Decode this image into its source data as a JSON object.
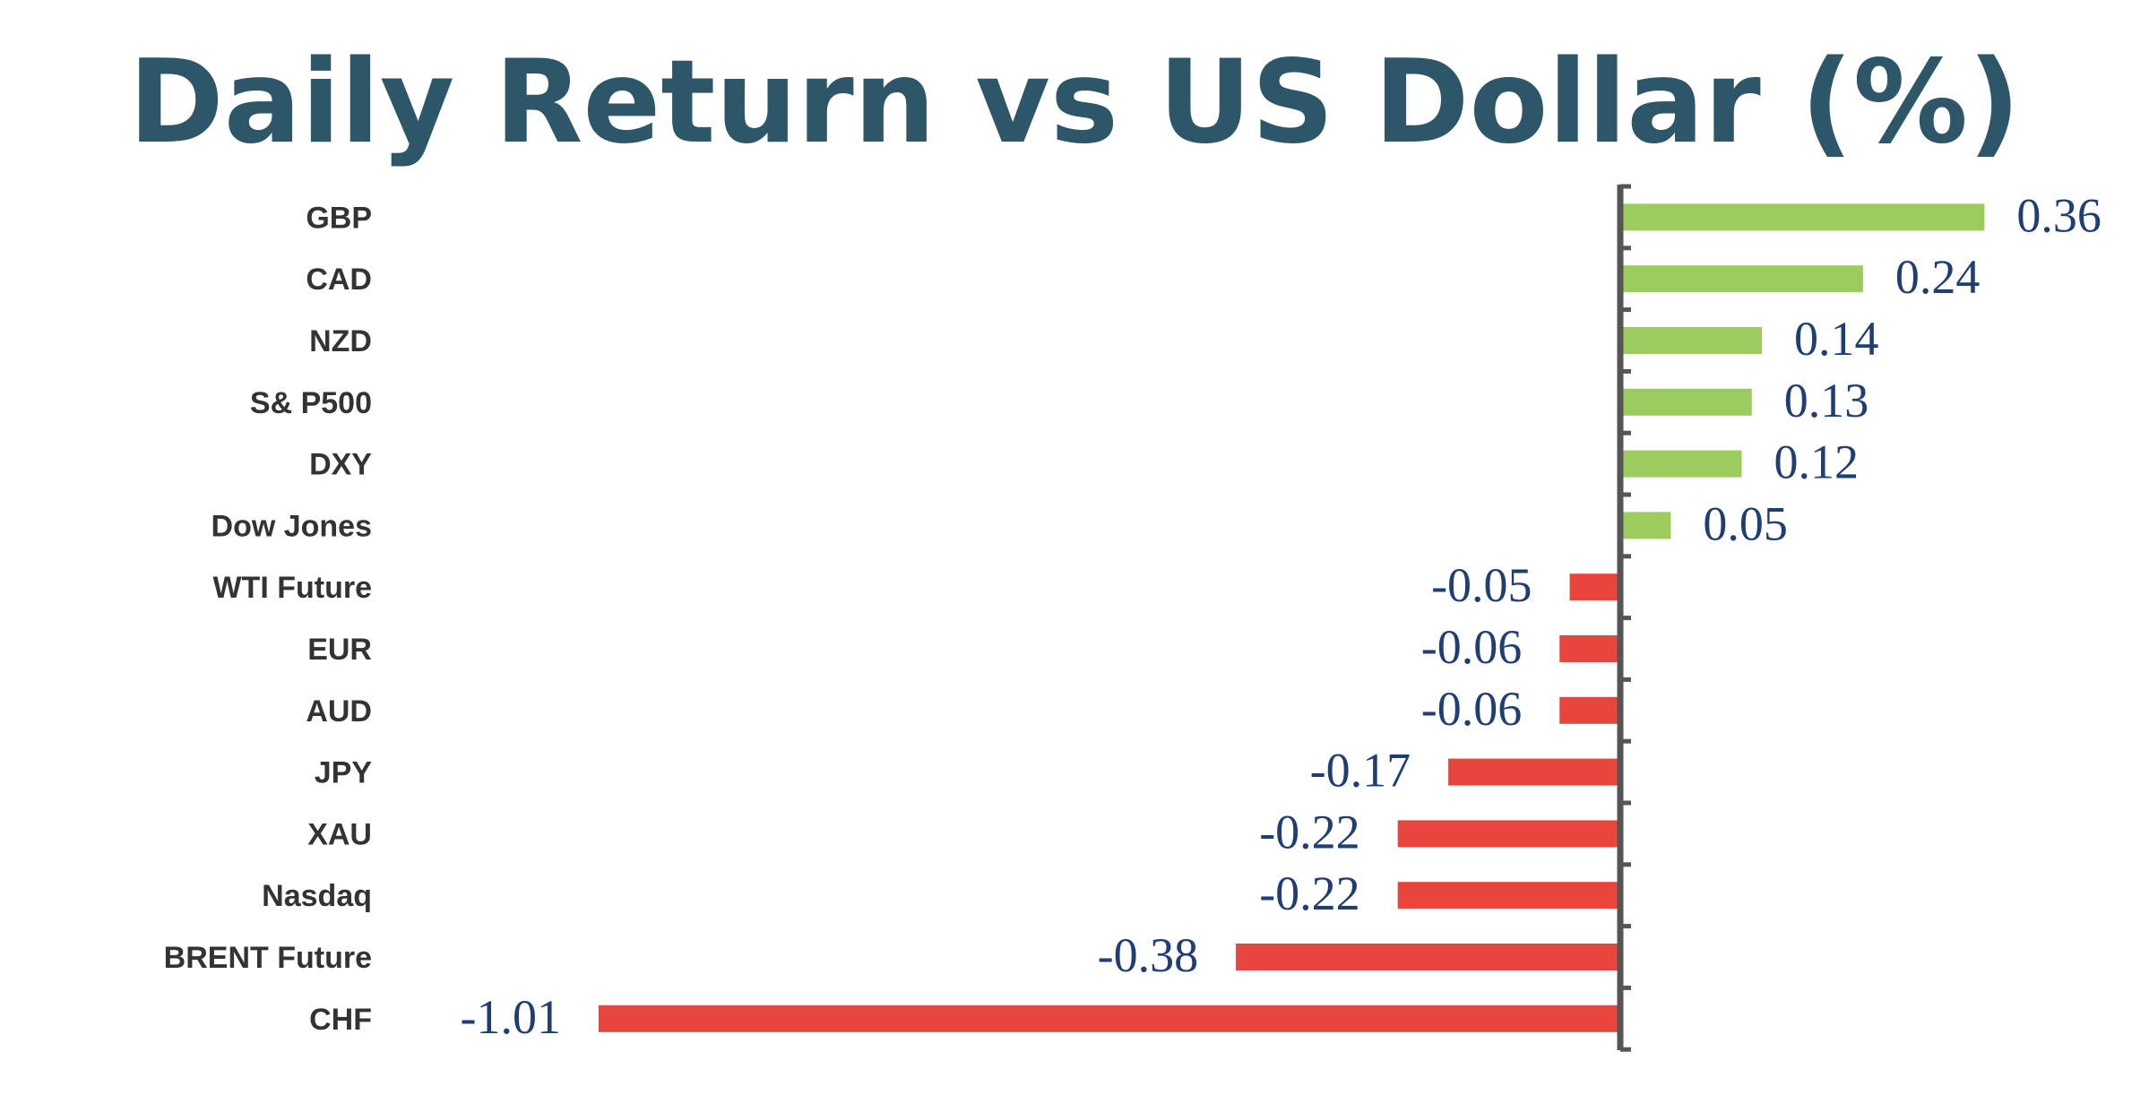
{
  "chart_data": {
    "type": "bar",
    "orientation": "horizontal",
    "title": "Daily Return vs US Dollar (%)",
    "categories": [
      "GBP",
      "CAD",
      "NZD",
      "S& P500",
      "DXY",
      "Dow Jones",
      "WTI Future",
      "EUR",
      "AUD",
      "JPY",
      "XAU",
      "Nasdaq",
      "BRENT Future",
      "CHF"
    ],
    "values": [
      0.36,
      0.24,
      0.14,
      0.13,
      0.12,
      0.05,
      -0.05,
      -0.06,
      -0.06,
      -0.17,
      -0.22,
      -0.22,
      -0.38,
      -1.01
    ],
    "value_labels": [
      "0.36",
      "0.24",
      "0.14",
      "0.13",
      "0.12",
      "0.05",
      "-0.05",
      "-0.06",
      "-0.06",
      "-0.17",
      "-0.22",
      "-0.22",
      "-0.38",
      "-1.01"
    ],
    "xlim": [
      -1.01,
      0.36
    ],
    "grid": false,
    "legend": "none",
    "colors": {
      "positive": "#9ccb5e",
      "negative": "#e8453c",
      "axis": "#555555",
      "title": "#2e5669",
      "value_text": "#1f3e73"
    }
  }
}
